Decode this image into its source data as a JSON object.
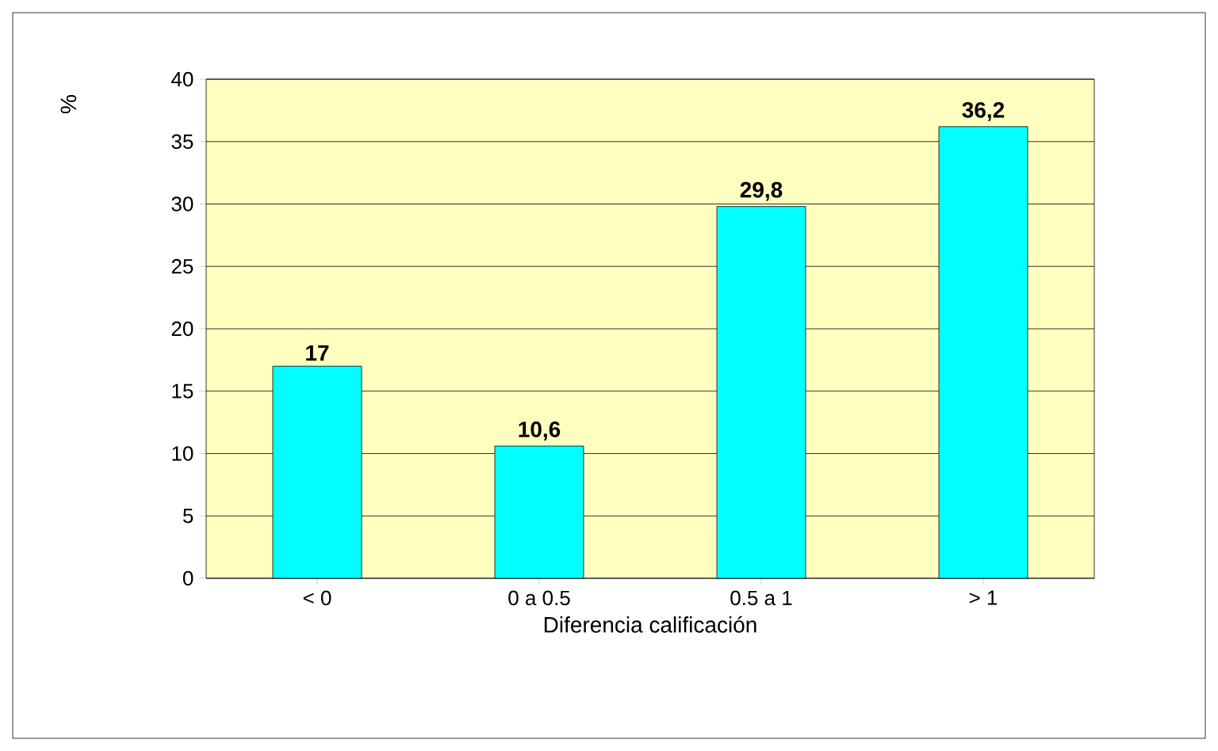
{
  "chart_data": {
    "type": "bar",
    "xlabel": "Diferencia calificación",
    "ylabel": "%",
    "categories": [
      "< 0",
      "0 a 0.5",
      "0.5 a 1",
      "> 1"
    ],
    "values": [
      17,
      10.6,
      29.8,
      36.2
    ],
    "value_labels": [
      "17",
      "10,6",
      "29,8",
      "36,2"
    ],
    "color": "#00ffff",
    "ylim": [
      0,
      40
    ],
    "yticks": [
      0,
      5,
      10,
      15,
      20,
      25,
      30,
      35,
      40
    ],
    "grid": "y"
  }
}
